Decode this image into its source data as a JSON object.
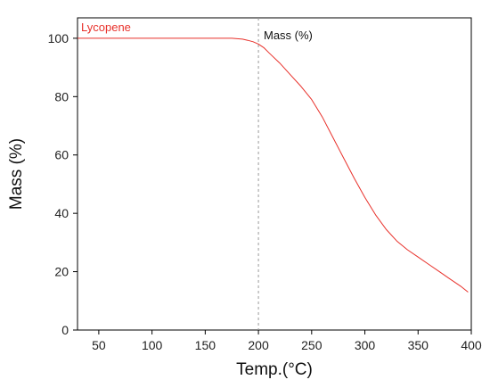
{
  "chart_data": {
    "type": "line",
    "xlabel": "Temp.(°C)",
    "ylabel": "Mass (%)",
    "xlim": [
      30,
      400
    ],
    "ylim": [
      0,
      107
    ],
    "xticks": [
      50,
      100,
      150,
      200,
      250,
      300,
      350,
      400
    ],
    "yticks": [
      0,
      20,
      40,
      60,
      80,
      100
    ],
    "grid": false,
    "series": [
      {
        "name": "Lycopene",
        "color": "#e8302a",
        "x": [
          30,
          60,
          100,
          150,
          175,
          185,
          190,
          195,
          200,
          205,
          210,
          220,
          230,
          240,
          250,
          260,
          270,
          280,
          290,
          300,
          310,
          320,
          330,
          340,
          350,
          360,
          370,
          380,
          390,
          397
        ],
        "y": [
          100,
          100,
          100,
          100,
          100,
          99.7,
          99.3,
          98.8,
          98.0,
          96.8,
          95.0,
          91.5,
          87.5,
          83.5,
          79.0,
          73.0,
          66.0,
          59.0,
          52.0,
          45.5,
          39.5,
          34.5,
          30.5,
          27.5,
          25.0,
          22.5,
          20.0,
          17.5,
          15.0,
          13.0
        ]
      }
    ],
    "annotations": [
      {
        "text": "Mass (%)",
        "x": 200,
        "y": 100
      }
    ],
    "vline": {
      "x": 200,
      "color": "#9a9a9a",
      "style": "dashed"
    }
  }
}
